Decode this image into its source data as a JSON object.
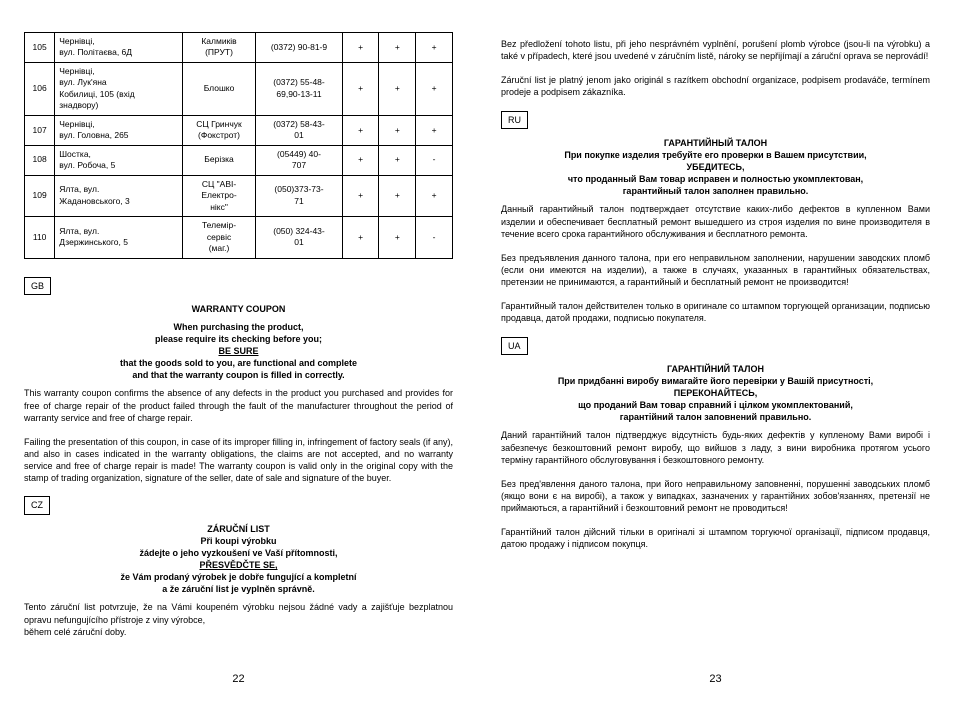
{
  "left": {
    "table": {
      "rows": [
        {
          "n": "105",
          "addr": "Чернівці,\nвул. Політаєва, 6Д",
          "name": "Калмиків\n(ПРУТ)",
          "phone": "(0372) 90-81-9",
          "c1": "+",
          "c2": "+",
          "c3": "+"
        },
        {
          "n": "106",
          "addr": "Чернівці,\nвул. Лук'яна\nКобилиці, 105 (вхід\nзнадвору)",
          "name": "Блошко",
          "phone": "(0372) 55-48-\n69,90-13-11",
          "c1": "+",
          "c2": "+",
          "c3": "+"
        },
        {
          "n": "107",
          "addr": "Чернівці,\nвул. Головна, 265",
          "name": "СЦ Гринчук\n(Фокстрот)",
          "phone": "(0372) 58-43-\n01",
          "c1": "+",
          "c2": "+",
          "c3": "+"
        },
        {
          "n": "108",
          "addr": "Шостка,\nвул. Робоча, 5",
          "name": "Берізка",
          "phone": "(05449) 40-\n707",
          "c1": "+",
          "c2": "+",
          "c3": "-"
        },
        {
          "n": "109",
          "addr": "Ялта, вул.\nЖадановського, 3",
          "name": "СЦ \"АВІ-\nЕлектро-\nнікс\"",
          "phone": "(050)373-73-\n71",
          "c1": "+",
          "c2": "+",
          "c3": "+"
        },
        {
          "n": "110",
          "addr": "Ялта, вул.\nДзержинського, 5",
          "name": "Телемір-\nсервіс\n(маг.)",
          "phone": "(050) 324-43-\n01",
          "c1": "+",
          "c2": "+",
          "c3": "-"
        }
      ]
    },
    "gb": {
      "tag": "GB",
      "title": "WARRANTY COUPON",
      "l1": "When purchasing the product,",
      "l2": "please require its checking before you;",
      "l3": "BE SURE",
      "l4": "that the goods sold to you, are functional and complete",
      "l5": "and that the warranty coupon is filled in correctly.",
      "p1": "This warranty coupon confirms the absence of any defects in the product you purchased and provides for free of charge repair of the product failed through  the fault of the manufacturer throughout the period  of warranty service and free of charge repair.",
      "p2": "Failing the presentation of this coupon, in case of its improper filling in, infringement of factory seals (if any), and also in cases indicated in the warranty obligations, the claims are not accepted, and no warranty service and free of charge repair is made! The warranty coupon is valid only in the original copy with the stamp of trading organization, signature of the seller, date of sale and signature of the buyer."
    },
    "cz": {
      "tag": "CZ",
      "title": "ZÁRUČNÍ LIST",
      "l1": "Při koupi výrobku",
      "l2": "žádejte o jeho vyzkoušení ve Vaší přítomnosti,",
      "l3": "PŘESVĚDČTE SE,",
      "l4": "že Vám prodaný výrobek je dobře fungující a kompletní",
      "l5": "a že záruční list je vyplněn správně.",
      "p1": "Tento záruční list potvrzuje, že na Vámi koupeném výrobku nejsou žádné vady a zajišťuje bezplatnou opravu nefungujícího přístroje z viny výrobce,\nběhem celé záruční doby."
    },
    "pagenum": "22"
  },
  "right": {
    "top_p1": "Bez předložení tohoto listu, při jeho nesprávném vyplnění, porušení plomb výrobce (jsou-li na výrobku) a také v případech, které jsou uvedené v záručním listě, nároky se nepřijímají a záruční oprava se neprovádí!",
    "top_p2": "Záruční list je platný jenom jako originál s razítkem obchodní organizace, podpisem prodaváče, termínem prodeje a podpisem zákazníka.",
    "ru": {
      "tag": "RU",
      "title": "ГАРАНТИЙНЫЙ ТАЛОН",
      "l1": "При покупке изделия требуйте его проверки в Вашем присутствии,",
      "l2": "УБЕДИТЕСЬ,",
      "l3": "что проданный Вам товар исправен и полностью укомплектован,",
      "l4": "гарантийный талон заполнен правильно.",
      "p1": "Данный гарантийный талон подтверждает отсутствие каких-либо дефектов в купленном Вами изделии и обеспечивает бесплатный ремонт вышедшего из строя изделия по вине производителя в течение всего срока гарантийного обслуживания и бесплатного ремонта.",
      "p2": "Без предъявления данного талона, при его неправильном заполнении, нарушении заводских пломб (если они имеются на изделии), а также в случаях,  указанных в гарантийных  обязательствах,  претензии  не принимаются, а гарантийный и бесплатный ремонт не производится!",
      "p3": "Гарантийный талон действителен только в оригинале со штампом торгующей организации, подписью продавца, датой продажи, подписью покупателя."
    },
    "ua": {
      "tag": "UA",
      "title": "ГАРАНТІЙНИЙ ТАЛОН",
      "l1": "При придбанні виробу вимагайте його перевірки у Вашій присутності,",
      "l2": "ПЕРЕКОНАЙТЕСЬ,",
      "l3": "що проданий Вам товар справний і цілком укомплектований,",
      "l4": "гарантійний талон заповнений правильно.",
      "p1": "Даний гарантійний талон підтверджує відсутність будь-яких дефектів у купленому Вами виробі і забезпечує безкоштовний ремонт виробу,  що   вийшов  з  ладу,  з  вини  виробника  протягом  усього  терміну  гарантійного  обслуговування і безкоштовного ремонту.",
      "p2": "Без пред'явлення даного талона, при його неправильному заповненні, порушенні заводських пломб (якщо вони є на виробі), а також у випадках,  зазначених у  гарантійних  зобов'язаннях,  претензії  не приймаються, а гарантійний і безкоштовний ремонт не проводиться!",
      "p3": "Гарантійний талон дійсний тільки в оригіналі зі штампом торгуючої організації, підписом продавця,  датою продажу  і підписом покупця."
    },
    "pagenum": "23"
  }
}
